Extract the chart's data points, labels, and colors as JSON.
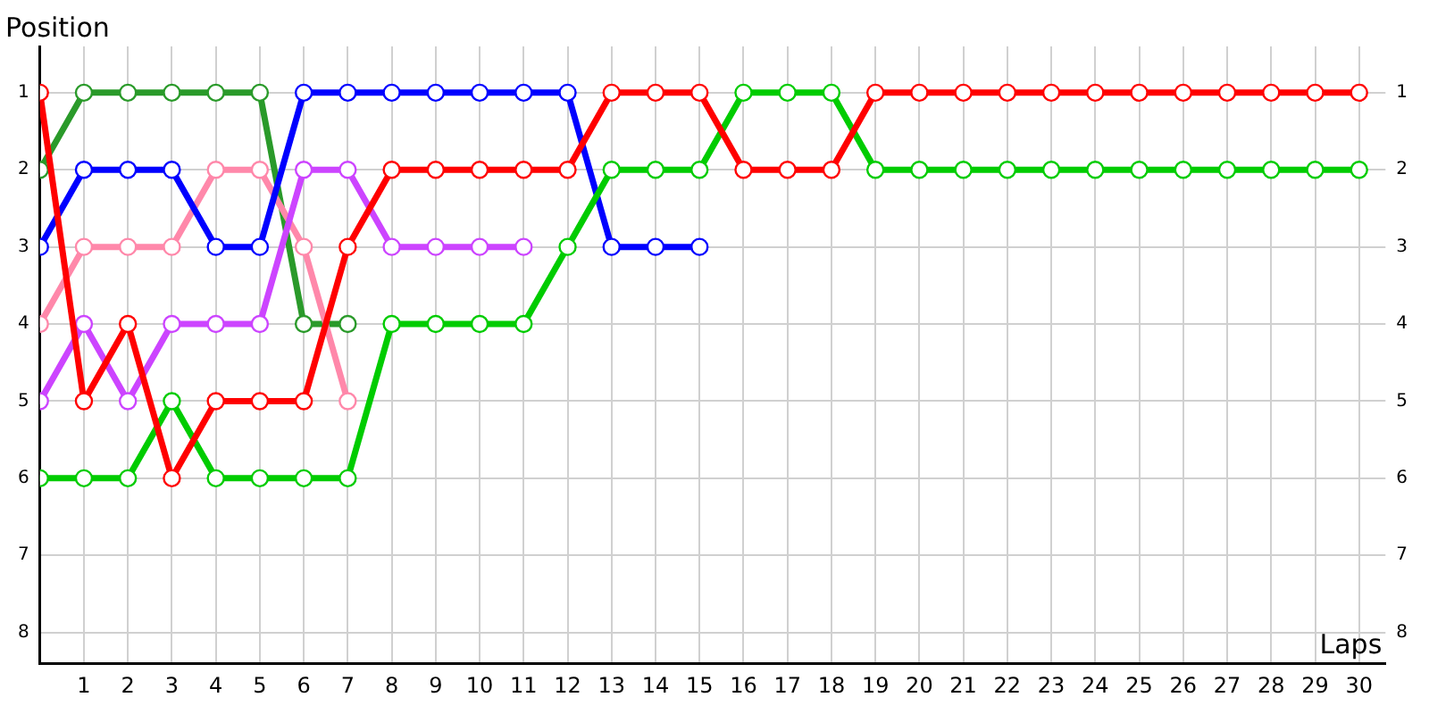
{
  "chart_data": {
    "type": "line",
    "xlabel": "Laps",
    "ylabel": "Position",
    "x": [
      0,
      1,
      2,
      3,
      4,
      5,
      6,
      7,
      8,
      9,
      10,
      11,
      12,
      13,
      14,
      15,
      16,
      17,
      18,
      19,
      20,
      21,
      22,
      23,
      24,
      25,
      26,
      27,
      28,
      29,
      30
    ],
    "series": [
      {
        "color": "#ff0000",
        "values": [
          1,
          5,
          4,
          6,
          5,
          5,
          5,
          3,
          2,
          2,
          2,
          2,
          2,
          1,
          1,
          1,
          2,
          2,
          2,
          1,
          1,
          1,
          1,
          1,
          1,
          1,
          1,
          1,
          1,
          1,
          1
        ]
      },
      {
        "color": "#00cc00",
        "values": [
          6,
          6,
          6,
          5,
          6,
          6,
          6,
          6,
          4,
          4,
          4,
          4,
          3,
          2,
          2,
          2,
          1,
          1,
          1,
          2,
          2,
          2,
          2,
          2,
          2,
          2,
          2,
          2,
          2,
          2,
          2
        ]
      },
      {
        "color": "#0000ff",
        "values": [
          3,
          2,
          2,
          2,
          3,
          3,
          1,
          1,
          1,
          1,
          1,
          1,
          1,
          3,
          3,
          3,
          null,
          null,
          null,
          null,
          null,
          null,
          null,
          null,
          null,
          null,
          null,
          null,
          null,
          null,
          null
        ]
      },
      {
        "color": "#cc44ff",
        "values": [
          5,
          4,
          5,
          4,
          4,
          4,
          2,
          2,
          3,
          3,
          3,
          3,
          null,
          null,
          null,
          null,
          null,
          null,
          null,
          null,
          null,
          null,
          null,
          null,
          null,
          null,
          null,
          null,
          null,
          null,
          null
        ]
      },
      {
        "color": "#ff88aa",
        "values": [
          4,
          3,
          3,
          3,
          2,
          2,
          3,
          5,
          null,
          null,
          null,
          null,
          null,
          null,
          null,
          null,
          null,
          null,
          null,
          null,
          null,
          null,
          null,
          null,
          null,
          null,
          null,
          null,
          null,
          null,
          null
        ]
      },
      {
        "color": "#2a9a2a",
        "values": [
          2,
          1,
          1,
          1,
          1,
          1,
          4,
          4,
          null,
          null,
          null,
          null,
          null,
          null,
          null,
          null,
          null,
          null,
          null,
          null,
          null,
          null,
          null,
          null,
          null,
          null,
          null,
          null,
          null,
          null,
          null
        ]
      }
    ],
    "xlim": [
      0,
      30.6
    ],
    "xticks": [
      1,
      2,
      3,
      4,
      5,
      6,
      7,
      8,
      9,
      10,
      11,
      12,
      13,
      14,
      15,
      16,
      17,
      18,
      19,
      20,
      21,
      22,
      23,
      24,
      25,
      26,
      27,
      28,
      29,
      30
    ],
    "ylim": [
      8.4,
      0.4
    ],
    "yticks": [
      1,
      2,
      3,
      4,
      5,
      6,
      7,
      8
    ],
    "y2lim": [
      8.4,
      0.4
    ],
    "y2ticks": [
      1,
      2,
      3,
      4,
      5,
      6,
      7,
      8
    ],
    "grid": true,
    "legend": false,
    "marker": "circle",
    "line_style": "solid"
  }
}
